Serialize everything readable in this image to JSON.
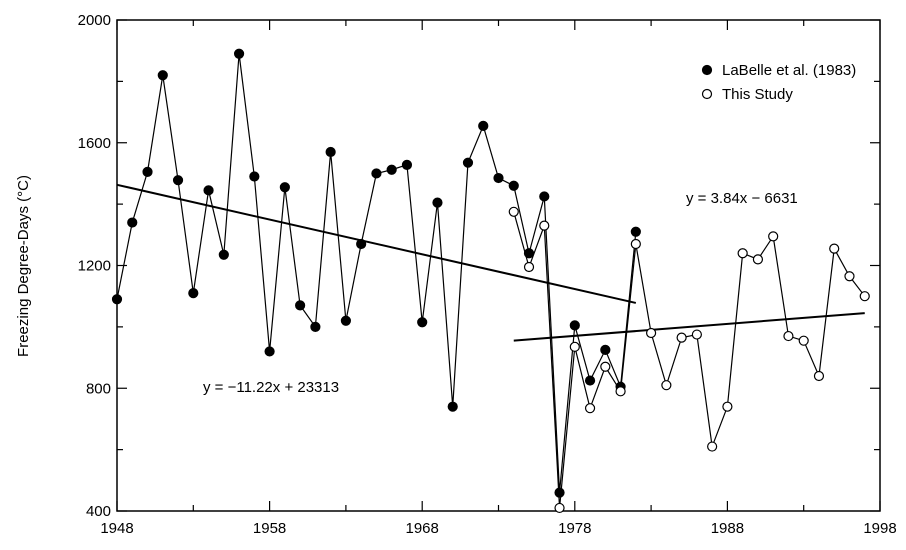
{
  "chart_data": {
    "type": "scatter",
    "ylabel": "Freezing Degree-Days (°C)",
    "xlabel": "",
    "xlim": [
      1948,
      1998
    ],
    "ylim": [
      400,
      2000
    ],
    "x_ticks": [
      1948,
      1958,
      1968,
      1978,
      1988,
      1998
    ],
    "y_ticks": [
      400,
      800,
      1200,
      1600,
      2000
    ],
    "grid": false,
    "legend_position": "top-right",
    "series": [
      {
        "name": "LaBelle et al. (1983)",
        "marker": "filled-circle",
        "color": "#000000",
        "x": [
          1948,
          1949,
          1950,
          1951,
          1952,
          1953,
          1954,
          1955,
          1956,
          1957,
          1958,
          1959,
          1960,
          1961,
          1962,
          1963,
          1964,
          1965,
          1966,
          1967,
          1968,
          1969,
          1970,
          1971,
          1972,
          1973,
          1974,
          1975,
          1976,
          1977,
          1978,
          1979,
          1980,
          1981,
          1982
        ],
        "y": [
          1090,
          1340,
          1505,
          1820,
          1478,
          1110,
          1445,
          1235,
          1890,
          1490,
          920,
          1455,
          1070,
          1000,
          1570,
          1020,
          1270,
          1500,
          1512,
          1528,
          1015,
          1405,
          740,
          1535,
          1655,
          1485,
          1460,
          1240,
          1425,
          460,
          1005,
          825,
          925,
          805,
          1310
        ]
      },
      {
        "name": "This Study",
        "marker": "open-circle",
        "color": "#000000",
        "x": [
          1974,
          1975,
          1976,
          1977,
          1978,
          1979,
          1980,
          1981,
          1982,
          1983,
          1984,
          1985,
          1986,
          1987,
          1988,
          1989,
          1990,
          1991,
          1992,
          1993,
          1994,
          1995,
          1996,
          1997
        ],
        "y": [
          1375,
          1195,
          1330,
          410,
          935,
          735,
          870,
          790,
          1270,
          980,
          810,
          965,
          975,
          610,
          740,
          1240,
          1220,
          1295,
          970,
          955,
          840,
          1255,
          1165,
          1100
        ]
      }
    ],
    "trend_lines": [
      {
        "label": "y = −11.22x + 23313",
        "x": [
          1948,
          1982
        ],
        "y": [
          1463,
          1078
        ]
      },
      {
        "label": "y = 3.84x − 6631",
        "x": [
          1974,
          1997
        ],
        "y": [
          955,
          1045
        ]
      }
    ]
  }
}
